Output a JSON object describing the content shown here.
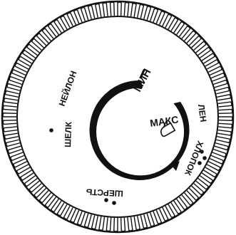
{
  "dial": {
    "labels": {
      "min": "МИН",
      "max": "МАКС",
      "linen": "ЛЕН",
      "cotton": "ХЛОПОК",
      "wool": "ШЕРСТЬ",
      "silk": "ШЕЛК",
      "nylon": "НЕЙЛОН"
    },
    "dots": {
      "silk": 1,
      "wool": 2,
      "cotton": 3
    },
    "colors": {
      "ink": "#111111",
      "background": "#ffffff"
    },
    "icons": {
      "max_marker": "iron-icon",
      "pointer": "dial-pointer"
    }
  }
}
